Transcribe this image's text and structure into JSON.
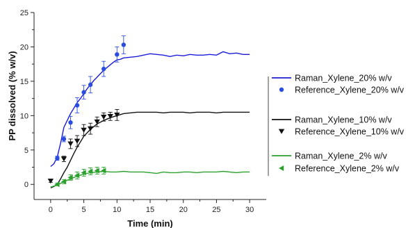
{
  "chart_data": {
    "type": "line",
    "title": "",
    "xlabel": "Time (min)",
    "ylabel": "PP dissolved (% w/v)",
    "xlim": [
      -2.5,
      32.5
    ],
    "ylim": [
      -2.2,
      25
    ],
    "xticks": [
      0,
      5,
      10,
      15,
      20,
      25,
      30
    ],
    "yticks": [
      0,
      5,
      10,
      15,
      20,
      25
    ],
    "grid": false,
    "legend_placement": "right",
    "series": [
      {
        "name": "Raman_Xylene_20% w/v",
        "kind": "line",
        "color": "#1c1cd8",
        "x": [
          0,
          0.5,
          1,
          1.5,
          2,
          2.5,
          3,
          3.5,
          4,
          4.5,
          5,
          5.5,
          6,
          6.5,
          7,
          7.5,
          8,
          8.5,
          9,
          9.5,
          10,
          10.5,
          11,
          12,
          13,
          14,
          15,
          16,
          17,
          18,
          19,
          20,
          21,
          22,
          23,
          24,
          25,
          26,
          27,
          28,
          29,
          30
        ],
        "y": [
          2.6,
          3.0,
          4.0,
          6.0,
          8.3,
          9.3,
          10.3,
          11.1,
          11.9,
          12.5,
          13.2,
          13.9,
          14.5,
          15.1,
          15.6,
          16.1,
          16.6,
          17.0,
          17.4,
          17.8,
          18.1,
          18.2,
          18.4,
          18.5,
          18.6,
          18.8,
          19.0,
          18.9,
          18.8,
          18.6,
          18.8,
          18.7,
          18.9,
          18.8,
          18.8,
          18.9,
          18.8,
          19.3,
          19.0,
          19.1,
          18.9,
          18.9
        ]
      },
      {
        "name": "Reference_Xylene_20% w/v",
        "kind": "marker",
        "marker": "circle",
        "color": "#2a4de0",
        "x": [
          1,
          2,
          3,
          4,
          5,
          6,
          8,
          10,
          11
        ],
        "y": [
          3.8,
          6.6,
          9.0,
          11.5,
          13.4,
          14.5,
          16.8,
          18.9,
          20.3
        ],
        "err": [
          0.3,
          0.4,
          0.9,
          1.1,
          1.0,
          1.2,
          1.1,
          1.1,
          1.3
        ]
      },
      {
        "name": "Raman_Xylene_10% w/v",
        "kind": "line",
        "color": "#111111",
        "x": [
          0,
          0.5,
          1,
          1.5,
          2,
          2.5,
          3,
          3.5,
          4,
          5,
          6,
          7,
          8,
          9,
          10,
          11,
          12,
          13,
          14,
          15,
          16,
          17,
          18,
          19,
          20,
          21,
          22,
          23,
          24,
          25,
          26,
          27,
          28,
          29,
          30
        ],
        "y": [
          -0.5,
          -0.3,
          0.0,
          0.8,
          1.7,
          2.5,
          3.5,
          4.5,
          5.4,
          7.0,
          8.0,
          8.8,
          9.3,
          9.7,
          10.0,
          10.3,
          10.4,
          10.5,
          10.5,
          10.5,
          10.5,
          10.4,
          10.5,
          10.5,
          10.5,
          10.4,
          10.5,
          10.5,
          10.5,
          10.4,
          10.5,
          10.5,
          10.5,
          10.5,
          10.5
        ]
      },
      {
        "name": "Reference_Xylene_10% w/v",
        "kind": "marker",
        "marker": "triangle-down",
        "color": "#111111",
        "x": [
          0,
          2,
          3,
          4,
          5,
          6,
          7,
          8,
          9,
          10
        ],
        "y": [
          0.5,
          3.7,
          5.9,
          6.3,
          7.9,
          8.1,
          9.1,
          9.8,
          9.9,
          10.1
        ],
        "err": [
          0.2,
          0.4,
          0.7,
          0.8,
          0.8,
          0.8,
          0.7,
          0.6,
          0.6,
          0.8
        ]
      },
      {
        "name": "Raman_Xylene_2% w/v",
        "kind": "line",
        "color": "#2ca02c",
        "x": [
          0,
          1,
          2,
          3,
          4,
          5,
          6,
          7,
          8,
          9,
          10,
          11,
          12,
          13,
          14,
          15,
          16,
          17,
          18,
          19,
          20,
          21,
          22,
          23,
          24,
          25,
          26,
          27,
          28,
          29,
          30
        ],
        "y": [
          -0.4,
          -0.1,
          0.4,
          0.8,
          1.2,
          1.5,
          1.7,
          1.8,
          1.9,
          1.8,
          1.8,
          1.9,
          1.8,
          1.8,
          1.8,
          1.7,
          1.6,
          1.8,
          1.7,
          1.7,
          1.8,
          1.8,
          1.7,
          1.8,
          1.8,
          1.8,
          1.9,
          1.8,
          1.7,
          1.8,
          1.8
        ]
      },
      {
        "name": "Reference_Xylene_2% w/v",
        "kind": "marker",
        "marker": "triangle-left",
        "color": "#2ca02c",
        "x": [
          1,
          2,
          3,
          4,
          5,
          6,
          7,
          8
        ],
        "y": [
          0.0,
          0.4,
          1.0,
          1.3,
          1.7,
          1.9,
          2.0,
          2.0
        ],
        "err": [
          0.2,
          0.3,
          0.4,
          0.5,
          0.5,
          0.5,
          0.5,
          0.5
        ]
      }
    ]
  }
}
